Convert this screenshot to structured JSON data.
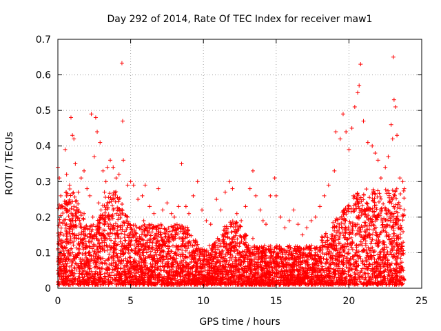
{
  "chart_data": {
    "type": "scatter",
    "title": "Day 292 of 2014, Rate Of TEC Index for receiver maw1",
    "xlabel": "GPS time / hours",
    "ylabel": "ROTI / TECUs",
    "xlim": [
      0,
      25
    ],
    "ylim": [
      0,
      0.7
    ],
    "x_ticks": [
      0,
      5,
      10,
      15,
      20,
      25
    ],
    "y_ticks": [
      0,
      0.1,
      0.2,
      0.3,
      0.4,
      0.5,
      0.6,
      0.7
    ],
    "grid": true,
    "legend": "none",
    "marker": "plus",
    "marker_color": "#ff0000",
    "series": [
      {
        "points": [
          [
            0.0,
            0.34
          ],
          [
            0.1,
            0.31
          ],
          [
            0.2,
            0.26
          ],
          [
            0.3,
            0.23
          ],
          [
            0.5,
            0.39
          ],
          [
            0.6,
            0.32
          ],
          [
            0.8,
            0.29
          ],
          [
            0.9,
            0.48
          ],
          [
            1.0,
            0.43
          ],
          [
            1.1,
            0.42
          ],
          [
            1.2,
            0.35
          ],
          [
            1.4,
            0.27
          ],
          [
            1.6,
            0.31
          ],
          [
            1.8,
            0.33
          ],
          [
            2.0,
            0.28
          ],
          [
            2.2,
            0.26
          ],
          [
            2.3,
            0.49
          ],
          [
            2.5,
            0.37
          ],
          [
            2.6,
            0.48
          ],
          [
            2.7,
            0.44
          ],
          [
            2.9,
            0.41
          ],
          [
            3.1,
            0.33
          ],
          [
            3.3,
            0.3
          ],
          [
            3.4,
            0.34
          ],
          [
            3.6,
            0.36
          ],
          [
            3.8,
            0.34
          ],
          [
            4.0,
            0.31
          ],
          [
            4.2,
            0.32
          ],
          [
            4.4,
            0.633
          ],
          [
            4.45,
            0.47
          ],
          [
            4.5,
            0.36
          ],
          [
            4.8,
            0.29
          ],
          [
            5.0,
            0.3
          ],
          [
            5.2,
            0.29
          ],
          [
            5.5,
            0.25
          ],
          [
            5.8,
            0.26
          ],
          [
            6.0,
            0.29
          ],
          [
            6.3,
            0.23
          ],
          [
            6.6,
            0.21
          ],
          [
            6.9,
            0.28
          ],
          [
            7.2,
            0.22
          ],
          [
            7.5,
            0.24
          ],
          [
            7.8,
            0.21
          ],
          [
            8.0,
            0.2
          ],
          [
            8.3,
            0.23
          ],
          [
            8.5,
            0.35
          ],
          [
            8.8,
            0.23
          ],
          [
            9.0,
            0.21
          ],
          [
            9.3,
            0.26
          ],
          [
            9.6,
            0.3
          ],
          [
            9.9,
            0.22
          ],
          [
            10.2,
            0.19
          ],
          [
            10.5,
            0.18
          ],
          [
            10.9,
            0.25
          ],
          [
            11.2,
            0.22
          ],
          [
            11.5,
            0.27
          ],
          [
            11.8,
            0.3
          ],
          [
            12.0,
            0.28
          ],
          [
            12.3,
            0.21
          ],
          [
            12.6,
            0.19
          ],
          [
            12.9,
            0.23
          ],
          [
            13.2,
            0.28
          ],
          [
            13.4,
            0.33
          ],
          [
            13.6,
            0.26
          ],
          [
            13.9,
            0.22
          ],
          [
            14.1,
            0.19
          ],
          [
            14.3,
            0.18
          ],
          [
            14.6,
            0.26
          ],
          [
            14.9,
            0.31
          ],
          [
            15.0,
            0.26
          ],
          [
            15.3,
            0.2
          ],
          [
            15.6,
            0.17
          ],
          [
            15.9,
            0.19
          ],
          [
            16.2,
            0.22
          ],
          [
            16.5,
            0.18
          ],
          [
            16.8,
            0.15
          ],
          [
            17.1,
            0.17
          ],
          [
            17.4,
            0.19
          ],
          [
            17.7,
            0.2
          ],
          [
            18.0,
            0.23
          ],
          [
            18.3,
            0.26
          ],
          [
            18.6,
            0.29
          ],
          [
            19.0,
            0.33
          ],
          [
            19.1,
            0.44
          ],
          [
            19.4,
            0.42
          ],
          [
            19.6,
            0.49
          ],
          [
            19.8,
            0.44
          ],
          [
            20.0,
            0.39
          ],
          [
            20.2,
            0.45
          ],
          [
            20.4,
            0.51
          ],
          [
            20.6,
            0.55
          ],
          [
            20.7,
            0.57
          ],
          [
            20.8,
            0.63
          ],
          [
            21.0,
            0.47
          ],
          [
            21.3,
            0.41
          ],
          [
            21.6,
            0.4
          ],
          [
            21.8,
            0.38
          ],
          [
            22.0,
            0.36
          ],
          [
            22.2,
            0.31
          ],
          [
            22.5,
            0.34
          ],
          [
            22.7,
            0.37
          ],
          [
            22.9,
            0.46
          ],
          [
            23.0,
            0.42
          ],
          [
            23.05,
            0.65
          ],
          [
            23.1,
            0.53
          ],
          [
            23.2,
            0.51
          ],
          [
            23.3,
            0.43
          ],
          [
            23.5,
            0.31
          ],
          [
            23.7,
            0.3
          ],
          [
            23.8,
            0.28
          ],
          [
            0.0,
            0.05
          ],
          [
            0.2,
            0.12
          ],
          [
            0.4,
            0.08
          ],
          [
            0.6,
            0.18
          ],
          [
            0.8,
            0.22
          ],
          [
            1.0,
            0.1
          ],
          [
            1.2,
            0.19
          ],
          [
            1.4,
            0.06
          ],
          [
            1.6,
            0.15
          ],
          [
            1.8,
            0.21
          ],
          [
            2.0,
            0.04
          ],
          [
            2.2,
            0.13
          ],
          [
            2.4,
            0.2
          ],
          [
            2.6,
            0.09
          ],
          [
            2.8,
            0.24
          ],
          [
            3.0,
            0.14
          ],
          [
            3.2,
            0.27
          ],
          [
            3.4,
            0.05
          ],
          [
            3.6,
            0.18
          ],
          [
            3.8,
            0.22
          ],
          [
            4.0,
            0.11
          ],
          [
            4.2,
            0.25
          ],
          [
            4.4,
            0.07
          ],
          [
            4.6,
            0.16
          ],
          [
            4.8,
            0.2
          ],
          [
            5.0,
            0.12
          ],
          [
            5.3,
            0.06
          ],
          [
            5.6,
            0.14
          ],
          [
            5.9,
            0.19
          ],
          [
            6.2,
            0.09
          ],
          [
            6.5,
            0.13
          ],
          [
            6.8,
            0.17
          ],
          [
            7.1,
            0.05
          ],
          [
            7.4,
            0.12
          ],
          [
            7.7,
            0.16
          ],
          [
            8.0,
            0.08
          ],
          [
            8.3,
            0.11
          ],
          [
            8.6,
            0.14
          ],
          [
            8.9,
            0.04
          ],
          [
            9.2,
            0.1
          ],
          [
            9.5,
            0.13
          ],
          [
            9.8,
            0.06
          ],
          [
            10.1,
            0.09
          ],
          [
            10.4,
            0.12
          ],
          [
            10.7,
            0.03
          ],
          [
            11.0,
            0.08
          ],
          [
            11.3,
            0.15
          ],
          [
            11.6,
            0.11
          ],
          [
            11.9,
            0.18
          ],
          [
            12.2,
            0.07
          ],
          [
            12.5,
            0.1
          ],
          [
            12.8,
            0.05
          ],
          [
            13.1,
            0.12
          ],
          [
            13.4,
            0.14
          ],
          [
            13.7,
            0.06
          ],
          [
            14.0,
            0.09
          ],
          [
            14.3,
            0.04
          ],
          [
            14.6,
            0.11
          ],
          [
            14.9,
            0.07
          ],
          [
            15.2,
            0.03
          ],
          [
            15.5,
            0.06
          ],
          [
            15.8,
            0.02
          ],
          [
            16.1,
            0.05
          ],
          [
            16.4,
            0.08
          ],
          [
            16.7,
            0.04
          ],
          [
            17.0,
            0.07
          ],
          [
            17.3,
            0.1
          ],
          [
            17.6,
            0.05
          ],
          [
            17.9,
            0.09
          ],
          [
            18.2,
            0.12
          ],
          [
            18.5,
            0.08
          ],
          [
            18.8,
            0.15
          ],
          [
            19.1,
            0.19
          ],
          [
            19.4,
            0.11
          ],
          [
            19.7,
            0.22
          ],
          [
            20.0,
            0.14
          ],
          [
            20.3,
            0.26
          ],
          [
            20.6,
            0.18
          ],
          [
            20.9,
            0.12
          ],
          [
            21.2,
            0.24
          ],
          [
            21.5,
            0.09
          ],
          [
            21.8,
            0.2
          ],
          [
            22.1,
            0.15
          ],
          [
            22.4,
            0.07
          ],
          [
            22.7,
            0.22
          ],
          [
            23.0,
            0.11
          ],
          [
            23.3,
            0.18
          ],
          [
            23.6,
            0.06
          ]
        ]
      }
    ]
  }
}
